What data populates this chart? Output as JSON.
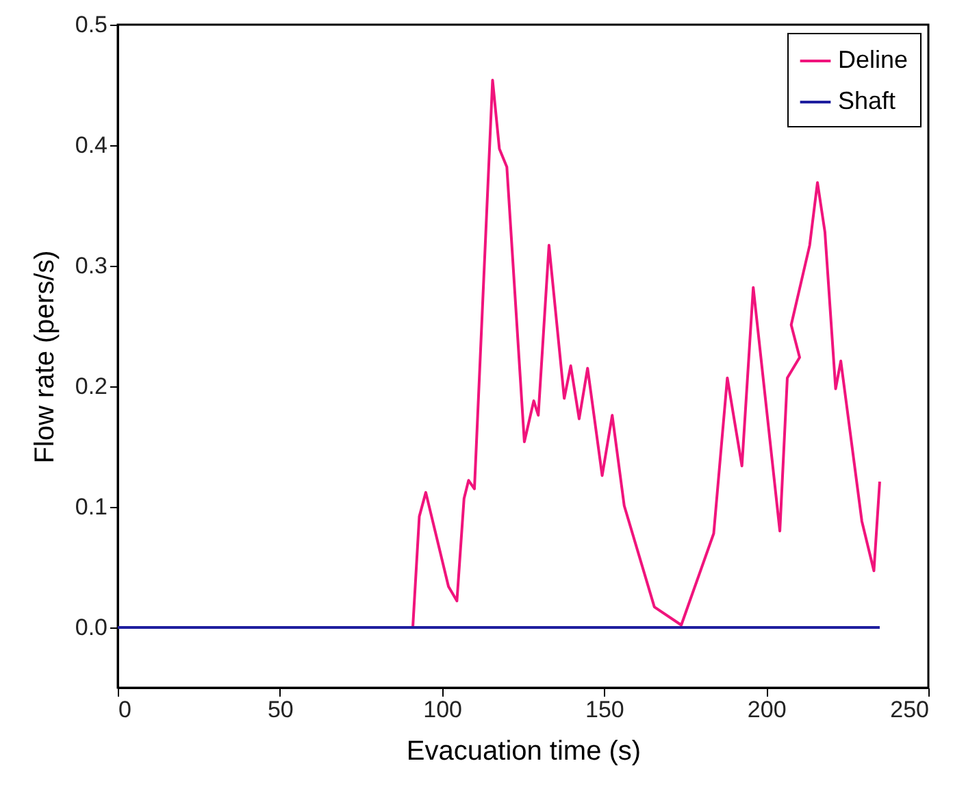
{
  "chart_data": {
    "type": "line",
    "xlabel": "Evacuation time (s)",
    "ylabel": "Flow rate (pers/s)",
    "xlim": [
      0,
      250
    ],
    "xticks": [
      0,
      50,
      100,
      150,
      200,
      250
    ],
    "ylim": [
      -0.05,
      0.5
    ],
    "yticks": [
      {
        "value": 0,
        "label": "0.0"
      },
      0.1,
      0.2,
      0.3,
      0.4,
      0.5
    ],
    "grid": false,
    "legend": "top right",
    "marker": "none",
    "line_style": "solid",
    "series": [
      {
        "name": "Deline",
        "color": "#f0147c",
        "x": [
          0,
          91,
          93,
          95,
          102,
          104.6,
          106.8,
          108.2,
          110,
          115.6,
          117.7,
          120,
          125.4,
          128.3,
          129.7,
          133,
          137.7,
          139.7,
          142.3,
          144.9,
          149.4,
          152.5,
          156.2,
          165.5,
          173.8,
          183.8,
          188,
          192.5,
          196,
          204.2,
          206.5,
          210.3,
          207.7,
          213.4,
          215.8,
          218.1,
          221.4,
          223,
          229.5,
          233.2,
          235
        ],
        "values": [
          0,
          0,
          0.092,
          0.112,
          0.034,
          0.022,
          0.107,
          0.122,
          0.115,
          0.454,
          0.397,
          0.382,
          0.154,
          0.188,
          0.176,
          0.317,
          0.19,
          0.217,
          0.173,
          0.215,
          0.126,
          0.176,
          0.101,
          0.017,
          0.002,
          0.078,
          0.207,
          0.134,
          0.282,
          0.08,
          0.207,
          0.224,
          0.251,
          0.317,
          0.369,
          0.328,
          0.198,
          0.221,
          0.088,
          0.047,
          0.121
        ]
      },
      {
        "name": "Shaft",
        "color": "#1f1f9f",
        "x": [
          0,
          235
        ],
        "values": [
          0,
          0
        ]
      }
    ]
  }
}
